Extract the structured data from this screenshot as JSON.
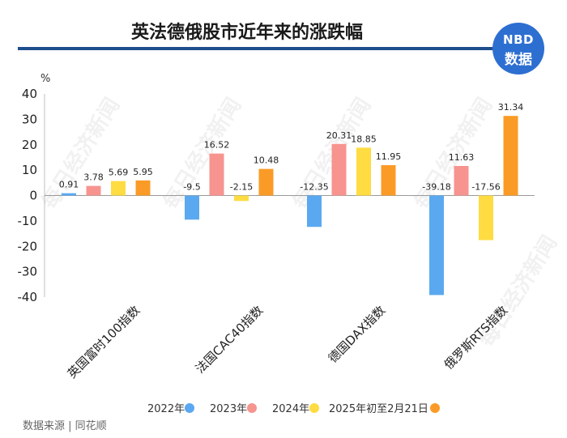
{
  "header": {
    "title": "英法德俄股市近年来的涨跌幅",
    "logo_line1": "NBD",
    "logo_line2": "数据"
  },
  "watermark": "每日经济新闻",
  "source": "数据来源 | 同花顺",
  "chart_data": {
    "type": "bar",
    "title": "英法德俄股市近年来的涨跌幅",
    "ylabel": "%",
    "xlabel": "",
    "ylim": [
      -40,
      40
    ],
    "yticks": [
      40,
      30,
      20,
      10,
      0,
      -10,
      -20,
      -30,
      -40
    ],
    "categories": [
      "英国富时100指数",
      "法国CAC40指数",
      "德国DAX指数",
      "俄罗斯RTS指数"
    ],
    "series": [
      {
        "name": "2022年",
        "color": "#5aa9f0",
        "values": [
          0.91,
          -9.5,
          -12.35,
          -39.18
        ]
      },
      {
        "name": "2023年",
        "color": "#f7948f",
        "values": [
          3.78,
          16.52,
          20.31,
          11.63
        ]
      },
      {
        "name": "2024年",
        "color": "#fedc42",
        "values": [
          5.69,
          -2.15,
          18.85,
          -17.56
        ]
      },
      {
        "name": "2025年初至2月21日",
        "color": "#fb9b27",
        "values": [
          5.95,
          10.48,
          11.95,
          31.34
        ]
      }
    ],
    "legend_position": "bottom"
  }
}
